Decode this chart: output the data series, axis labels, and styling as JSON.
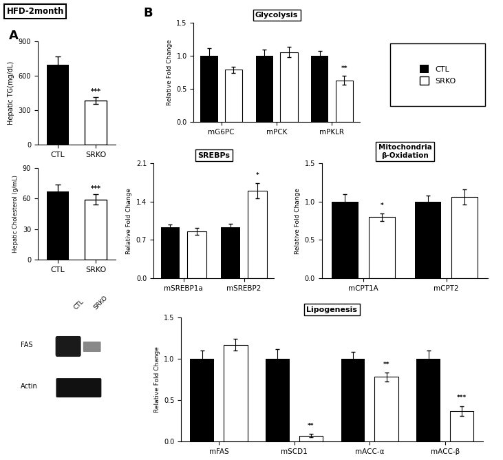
{
  "hfd_label": "HFD-2month",
  "panel_a_label": "A",
  "panel_b_label": "B",
  "tg_ctl_mean": 700,
  "tg_ctl_err": 70,
  "tg_srko_mean": 385,
  "tg_srko_err": 30,
  "tg_ylabel": "Hepatic TG(mg/dL)",
  "tg_ylim": [
    0,
    900
  ],
  "tg_yticks": [
    0,
    300,
    600,
    900
  ],
  "tg_srko_sig": "***",
  "cho_ctl_mean": 67,
  "cho_ctl_err": 7,
  "cho_srko_mean": 59,
  "cho_srko_err": 5,
  "cho_ylabel": "Hepatic Cholesterol (g/mL)",
  "cho_ylim": [
    0,
    90
  ],
  "cho_yticks": [
    0,
    30,
    60,
    90
  ],
  "cho_srko_sig": "***",
  "glycolysis_title": "Glycolysis",
  "glycolysis_genes": [
    "mG6PC",
    "mPCK",
    "mPKLR"
  ],
  "glycolysis_ctl": [
    1.0,
    1.0,
    1.0
  ],
  "glycolysis_ctl_err": [
    0.12,
    0.1,
    0.08
  ],
  "glycolysis_srko": [
    0.79,
    1.06,
    0.63
  ],
  "glycolysis_srko_err": [
    0.05,
    0.08,
    0.07
  ],
  "glycolysis_sig": [
    "",
    "",
    "**"
  ],
  "glycolysis_ylim": [
    0,
    1.5
  ],
  "glycolysis_yticks": [
    0,
    0.5,
    1.0,
    1.5
  ],
  "srebps_title": "SREBPs",
  "srebps_genes": [
    "mSREBP1a",
    "mSREBP2"
  ],
  "srebps_ctl": [
    0.93,
    0.93
  ],
  "srebps_ctl_err": [
    0.05,
    0.07
  ],
  "srebps_srko": [
    0.86,
    1.6
  ],
  "srebps_srko_err": [
    0.06,
    0.14
  ],
  "srebps_sig": [
    "",
    "*"
  ],
  "srebps_ylim": [
    0,
    2.1
  ],
  "srebps_yticks": [
    0,
    0.7,
    1.4,
    2.1
  ],
  "mito_title": "Mitochondria\nβ-Oxidation",
  "mito_genes": [
    "mCPT1A",
    "mCPT2"
  ],
  "mito_ctl": [
    1.0,
    1.0
  ],
  "mito_ctl_err": [
    0.1,
    0.08
  ],
  "mito_srko": [
    0.8,
    1.06
  ],
  "mito_srko_err": [
    0.05,
    0.1
  ],
  "mito_sig": [
    "*",
    ""
  ],
  "mito_ylim": [
    0,
    1.5
  ],
  "mito_yticks": [
    0,
    0.5,
    1.0,
    1.5
  ],
  "lipo_title": "Lipogenesis",
  "lipo_genes": [
    "mFAS",
    "mSCD1",
    "mACC-α",
    "mACC-β"
  ],
  "lipo_ctl": [
    1.0,
    1.0,
    1.0,
    1.0
  ],
  "lipo_ctl_err": [
    0.1,
    0.12,
    0.08,
    0.1
  ],
  "lipo_srko": [
    1.17,
    0.07,
    0.78,
    0.37
  ],
  "lipo_srko_err": [
    0.07,
    0.02,
    0.05,
    0.06
  ],
  "lipo_sig": [
    "",
    "**",
    "**",
    "***"
  ],
  "lipo_ylim": [
    0,
    1.5
  ],
  "lipo_yticks": [
    0,
    0.5,
    1.0,
    1.5
  ],
  "ylabel_gene": "Relative Fold Change",
  "ctl_color": "#000000",
  "srko_color": "#ffffff",
  "legend_ctl": "CTL",
  "legend_srko": "SRKO"
}
